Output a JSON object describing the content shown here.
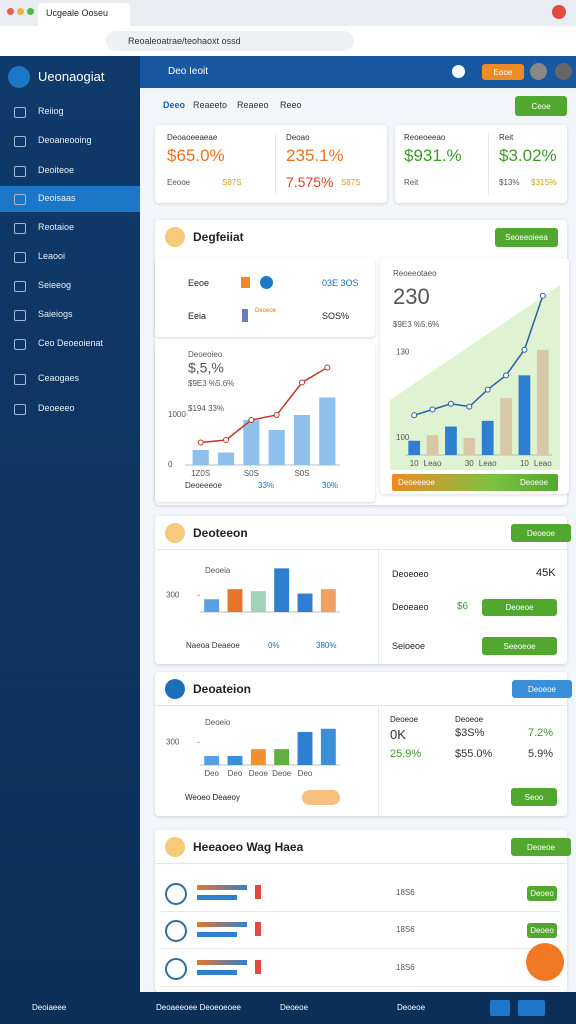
{
  "browser": {
    "tab": "Ucgeale Ooseu",
    "url": "Reoaleoatrae/teohaoxt ossd"
  },
  "sidebar": {
    "brand": "Ueonaogiat",
    "items": [
      "Reiiog",
      "Deoaneooing",
      "Deoiteoe",
      "Deoisaas",
      "Reotaioe",
      "Leaooi",
      "Seieeog",
      "Saieiogs",
      "Ceo Deoeoienat",
      "Ceaogaes",
      "Deoeeeo"
    ],
    "active": 3
  },
  "topbar": {
    "title": "Deo Ieoit",
    "button": "Eooe"
  },
  "tabs": {
    "items": [
      "Deeo",
      "Reaeeto",
      "Reaeeo",
      "Reeo"
    ],
    "active": 0,
    "button": "Ceoe"
  },
  "kpis": [
    {
      "label": "Deoaoeeaeae",
      "value": "$65.0%",
      "note": "Eeooe",
      "note2": "S87S"
    },
    {
      "label": "Deoao",
      "value": "235.1%",
      "note": "7.575%",
      "note2": "S87S"
    },
    {
      "label": "Reoeoeeao",
      "value": "$931.%",
      "note": "Reit"
    },
    {
      "label": "Reit",
      "value": "$3.02%",
      "note": "$13%",
      "note2": "$31S%"
    }
  ],
  "section1": {
    "title": "Degfeiiat",
    "button": "Seoeeoieea",
    "rows": [
      {
        "label": "Eeoe",
        "value": "03E 3OS"
      },
      {
        "label": "Eeia",
        "tag": "Deoeoe",
        "value": "SOS%"
      }
    ],
    "footer": [
      "Deoeeeoe",
      "33%",
      "30%"
    ],
    "bar_left": "Deoeeeoe",
    "bar_right": "Deoeoe"
  },
  "section2": {
    "title": "Deoteeon",
    "button": "Deoeoe",
    "footer": [
      "Naeoa Deaeoe",
      "0%",
      "380%"
    ],
    "rows": [
      {
        "label": "Deoeoeo",
        "value": "45K"
      },
      {
        "label": "Deoeaeo",
        "value": "$6",
        "button": "Deoeoe"
      },
      {
        "label": "Seioeoe",
        "button": "Seeoeoe"
      }
    ]
  },
  "section3": {
    "title": "Deoateion",
    "button": "Deoeoe",
    "footer": "Weoeo Deaeoy",
    "table": {
      "header": [
        "Deoeoe",
        "Deoeoe"
      ],
      "rows": [
        [
          "0K",
          "$3S%",
          "7.2%"
        ],
        [
          "25.9%",
          "$55.0%",
          "5.9%"
        ]
      ]
    },
    "button2": "Seoo"
  },
  "section4": {
    "title": "Heeaoeo Wag Haea",
    "button": "Deoeoe",
    "rows": [
      {
        "value": "18S6",
        "button": "Deoeo"
      },
      {
        "value": "18S6",
        "button": "Deoeo"
      },
      {
        "value": "18S6"
      }
    ]
  },
  "bottom": [
    "Deoiaeee",
    "Deoaeeoee Deoeoeoee",
    "Deoeoe",
    "Deoeoe"
  ],
  "chart_data": [
    {
      "type": "bar",
      "title": "Deoeoieo",
      "subtitle": "$,5,%",
      "annotations": [
        "$9E3 %5.6%",
        "$194 33%"
      ],
      "categories": [
        "1Z0S",
        null,
        "S0S",
        null,
        "S0S",
        null
      ],
      "values": [
        300,
        250,
        900,
        700,
        1000,
        1350
      ],
      "line_values": [
        450,
        500,
        900,
        1000,
        1650,
        1950
      ],
      "color": "#8fc0ec",
      "line_color": "#c0392b",
      "ylim": [
        0,
        2000
      ],
      "yticks": [
        0,
        1000
      ]
    },
    {
      "type": "bar",
      "title": "Reoeeotaeo",
      "headline": "230",
      "subtitle": "$9E3 %5.6%",
      "categories": [
        "10",
        "Leao",
        null,
        "30",
        "Leao",
        null,
        "10",
        "Leao"
      ],
      "values": [
        99,
        101,
        104,
        100,
        106,
        114,
        122,
        131
      ],
      "line_values": [
        108,
        110,
        112,
        111,
        117,
        122,
        131,
        150
      ],
      "colors": [
        "#2f7fd0",
        "#d9c8a8",
        "#2f7fd0",
        "#d9c8a8",
        "#2f7fd0",
        "#d9c8a8",
        "#2f7fd0",
        "#d9c8a8"
      ],
      "line_color": "#2c5fa8",
      "ylim": [
        94,
        152
      ],
      "yticks": [
        100,
        130
      ]
    },
    {
      "type": "bar",
      "title": "Deoeia",
      "values": [
        288,
        318,
        312,
        380,
        305,
        318
      ],
      "colors": [
        "#5aa0e0",
        "#e8742a",
        "#9fd3b8",
        "#2f7fd0",
        "#2f7fd0",
        "#f0a060"
      ],
      "ylim": [
        250,
        390
      ],
      "yticks": [
        300
      ]
    },
    {
      "type": "bar",
      "title": "Deoeio",
      "categories": [
        "Deo",
        "Deo",
        "Deoe",
        "Deoe",
        "Deo",
        null
      ],
      "values": [
        270,
        270,
        285,
        285,
        323,
        330
      ],
      "colors": [
        "#5aa0e0",
        "#3a8fd8",
        "#f09030",
        "#5fb040",
        "#2f7fd0",
        "#3a8fd8"
      ],
      "ylim": [
        250,
        345
      ],
      "yticks": [
        300
      ]
    }
  ]
}
